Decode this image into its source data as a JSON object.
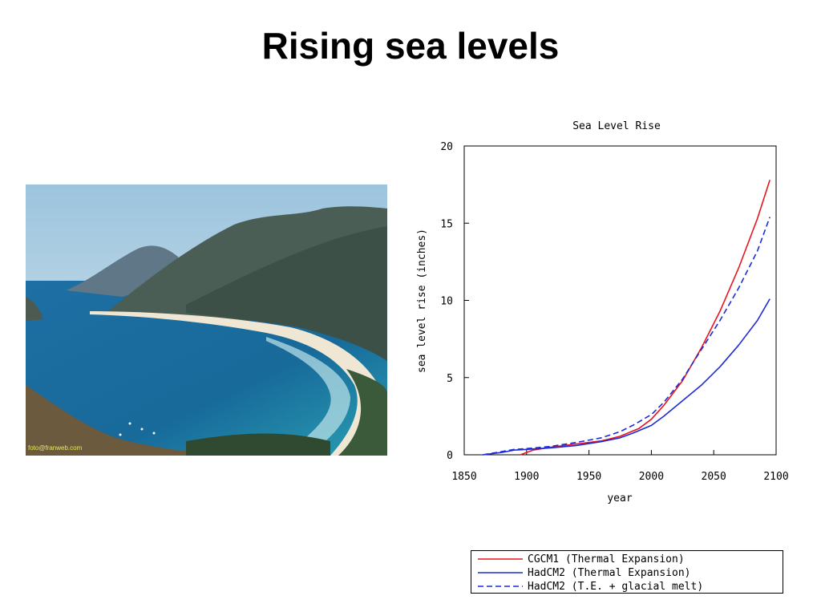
{
  "slide": {
    "title": "Rising sea levels",
    "photo_credit": "foto@franweb.com"
  },
  "colors": {
    "red": "#e8141e",
    "blue": "#1c2bd6"
  },
  "chart_data": {
    "type": "line",
    "title": "Sea Level Rise",
    "xlabel": "year",
    "ylabel": "sea level rise (inches)",
    "xlim": [
      1850,
      2100
    ],
    "ylim": [
      0,
      20
    ],
    "xticks": [
      1850,
      1900,
      1950,
      2000,
      2050,
      2100
    ],
    "yticks": [
      0,
      5,
      10,
      15,
      20
    ],
    "grid": false,
    "legend_position": "bottom",
    "series": [
      {
        "name": "CGCM1 (Thermal Expansion)",
        "color": "#e8141e",
        "dash": false,
        "x": [
          1895,
          1905,
          1920,
          1940,
          1960,
          1975,
          1990,
          2000,
          2010,
          2025,
          2040,
          2055,
          2070,
          2085,
          2095
        ],
        "y": [
          0,
          0.3,
          0.5,
          0.7,
          0.9,
          1.2,
          1.7,
          2.3,
          3.2,
          4.8,
          6.9,
          9.3,
          12.1,
          15.3,
          17.8
        ]
      },
      {
        "name": "HadCM2 (Thermal Expansion)",
        "color": "#1c2bd6",
        "dash": false,
        "x": [
          1865,
          1880,
          1890,
          1900,
          1920,
          1940,
          1960,
          1975,
          1985,
          2000,
          2010,
          2025,
          2040,
          2055,
          2070,
          2085,
          2095
        ],
        "y": [
          0,
          0.15,
          0.3,
          0.35,
          0.45,
          0.6,
          0.85,
          1.1,
          1.4,
          1.9,
          2.5,
          3.5,
          4.5,
          5.7,
          7.1,
          8.7,
          10.1
        ]
      },
      {
        "name": "HadCM2 (T.E. + glacial melt)",
        "color": "#1c2bd6",
        "dash": true,
        "x": [
          1865,
          1880,
          1890,
          1900,
          1920,
          1940,
          1960,
          1975,
          1985,
          2000,
          2010,
          2025,
          2040,
          2055,
          2070,
          2085,
          2095
        ],
        "y": [
          0,
          0.2,
          0.35,
          0.4,
          0.55,
          0.8,
          1.1,
          1.5,
          1.9,
          2.6,
          3.4,
          4.9,
          6.8,
          8.7,
          10.8,
          13.2,
          15.4
        ]
      }
    ]
  },
  "legend": {
    "items": [
      "CGCM1 (Thermal Expansion)",
      "HadCM2 (Thermal Expansion)",
      "HadCM2 (T.E. + glacial melt)"
    ]
  }
}
